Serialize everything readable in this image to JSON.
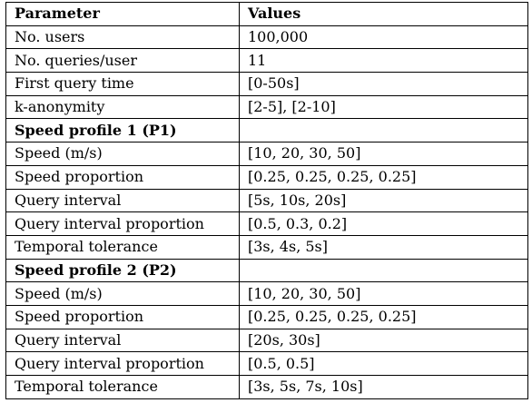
{
  "table": {
    "headers": [
      "Parameter",
      "Values"
    ],
    "rows": [
      {
        "param": "No. users",
        "value": "100,000"
      },
      {
        "param": "No. queries/user",
        "value": "11"
      },
      {
        "param": "First query time",
        "value": "[0-50s]"
      },
      {
        "param": "k-anonymity",
        "value": "[2-5], [2-10]"
      },
      {
        "param": "Speed profile 1 (P1)",
        "value": "",
        "section": true
      },
      {
        "param": "Speed (m/s)",
        "value": "[10, 20, 30, 50]"
      },
      {
        "param": "Speed proportion",
        "value": "[0.25, 0.25, 0.25, 0.25]"
      },
      {
        "param": "Query interval",
        "value": "[5s, 10s, 20s]"
      },
      {
        "param": "Query interval proportion",
        "value": "[0.5, 0.3, 0.2]"
      },
      {
        "param": "Temporal tolerance",
        "value": "[3s, 4s, 5s]"
      },
      {
        "param": "Speed profile 2 (P2)",
        "value": "",
        "section": true
      },
      {
        "param": "Speed (m/s)",
        "value": "[10, 20, 30, 50]"
      },
      {
        "param": "Speed proportion",
        "value": "[0.25, 0.25, 0.25, 0.25]"
      },
      {
        "param": "Query interval",
        "value": "[20s, 30s]"
      },
      {
        "param": "Query interval proportion",
        "value": "[0.5, 0.5]"
      },
      {
        "param": "Temporal tolerance",
        "value": "[3s, 5s, 7s, 10s]"
      }
    ]
  }
}
